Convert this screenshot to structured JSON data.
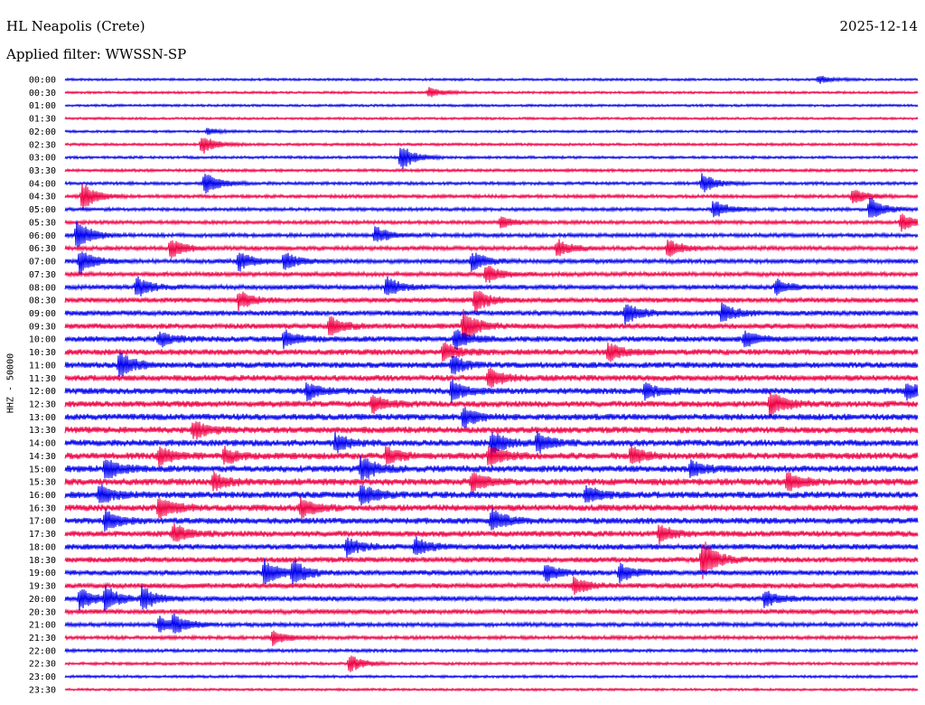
{
  "header": {
    "station": "HL Neapolis (Crete)",
    "date": "2025-12-14",
    "filter": "Applied filter: WWSSN-SP",
    "channel": "HHZ - 50000"
  },
  "colors": {
    "trace_a": "#0000ee",
    "trace_b": "#ee0044",
    "background": "#ffffff",
    "text": "#000000"
  },
  "chart_data": {
    "type": "line",
    "title": "HL Neapolis (Crete)",
    "subtitle": "Applied filter: WWSSN-SP",
    "ylabel": "HHZ - 50000",
    "grid": false,
    "legend": "none",
    "row_labels": [
      "00:00",
      "00:30",
      "01:00",
      "01:30",
      "02:00",
      "02:30",
      "03:00",
      "03:30",
      "04:00",
      "04:30",
      "05:00",
      "05:30",
      "06:00",
      "06:30",
      "07:00",
      "07:30",
      "08:00",
      "08:30",
      "09:00",
      "09:30",
      "10:00",
      "10:30",
      "11:00",
      "11:30",
      "12:00",
      "12:30",
      "13:00",
      "13:30",
      "14:00",
      "14:30",
      "15:00",
      "15:30",
      "16:00",
      "16:30",
      "17:00",
      "17:30",
      "18:00",
      "18:30",
      "19:00",
      "19:30",
      "20:00",
      "20:30",
      "21:00",
      "21:30",
      "22:00",
      "22:30",
      "23:00",
      "23:30"
    ],
    "row_minutes": 30,
    "noise_level": [
      0.9,
      0.9,
      0.9,
      0.9,
      0.9,
      1.0,
      1.0,
      1.1,
      1.2,
      1.3,
      1.3,
      1.4,
      1.5,
      1.6,
      1.7,
      1.7,
      1.8,
      1.9,
      2.0,
      2.1,
      2.2,
      2.3,
      2.3,
      2.3,
      2.4,
      2.4,
      2.5,
      2.5,
      2.5,
      2.6,
      2.6,
      2.6,
      2.6,
      2.5,
      2.4,
      2.3,
      2.2,
      2.1,
      2.0,
      2.0,
      1.9,
      1.8,
      1.6,
      1.4,
      1.2,
      1.1,
      1.0,
      0.9
    ],
    "events": [
      {
        "row": 0,
        "minute": 26.5,
        "amp": 4
      },
      {
        "row": 1,
        "minute": 12.8,
        "amp": 5
      },
      {
        "row": 4,
        "minute": 5.0,
        "amp": 3
      },
      {
        "row": 5,
        "minute": 4.8,
        "amp": 10
      },
      {
        "row": 6,
        "minute": 11.8,
        "amp": 14
      },
      {
        "row": 8,
        "minute": 4.9,
        "amp": 12
      },
      {
        "row": 8,
        "minute": 22.4,
        "amp": 10
      },
      {
        "row": 9,
        "minute": 0.6,
        "amp": 14
      },
      {
        "row": 9,
        "minute": 27.7,
        "amp": 8
      },
      {
        "row": 10,
        "minute": 22.8,
        "amp": 10
      },
      {
        "row": 10,
        "minute": 28.3,
        "amp": 12
      },
      {
        "row": 11,
        "minute": 15.3,
        "amp": 6
      },
      {
        "row": 11,
        "minute": 29.4,
        "amp": 9
      },
      {
        "row": 12,
        "minute": 0.4,
        "amp": 16
      },
      {
        "row": 12,
        "minute": 10.9,
        "amp": 9
      },
      {
        "row": 13,
        "minute": 3.7,
        "amp": 10
      },
      {
        "row": 13,
        "minute": 17.3,
        "amp": 9
      },
      {
        "row": 13,
        "minute": 21.2,
        "amp": 9
      },
      {
        "row": 14,
        "minute": 0.5,
        "amp": 14
      },
      {
        "row": 14,
        "minute": 6.1,
        "amp": 10
      },
      {
        "row": 14,
        "minute": 7.7,
        "amp": 10
      },
      {
        "row": 14,
        "minute": 14.3,
        "amp": 10
      },
      {
        "row": 15,
        "minute": 14.8,
        "amp": 10
      },
      {
        "row": 16,
        "minute": 2.5,
        "amp": 11
      },
      {
        "row": 16,
        "minute": 11.3,
        "amp": 11
      },
      {
        "row": 16,
        "minute": 25.0,
        "amp": 8
      },
      {
        "row": 17,
        "minute": 6.1,
        "amp": 10
      },
      {
        "row": 17,
        "minute": 14.4,
        "amp": 12
      },
      {
        "row": 18,
        "minute": 19.7,
        "amp": 11
      },
      {
        "row": 18,
        "minute": 23.1,
        "amp": 10
      },
      {
        "row": 19,
        "minute": 9.3,
        "amp": 10
      },
      {
        "row": 19,
        "minute": 14.0,
        "amp": 18
      },
      {
        "row": 20,
        "minute": 3.3,
        "amp": 8
      },
      {
        "row": 20,
        "minute": 7.7,
        "amp": 9
      },
      {
        "row": 20,
        "minute": 13.7,
        "amp": 11
      },
      {
        "row": 20,
        "minute": 23.9,
        "amp": 8
      },
      {
        "row": 21,
        "minute": 13.3,
        "amp": 10
      },
      {
        "row": 21,
        "minute": 19.1,
        "amp": 10
      },
      {
        "row": 22,
        "minute": 1.9,
        "amp": 14
      },
      {
        "row": 22,
        "minute": 13.6,
        "amp": 10
      },
      {
        "row": 23,
        "minute": 14.9,
        "amp": 10
      },
      {
        "row": 24,
        "minute": 8.5,
        "amp": 9
      },
      {
        "row": 24,
        "minute": 13.6,
        "amp": 11
      },
      {
        "row": 24,
        "minute": 20.4,
        "amp": 9
      },
      {
        "row": 24,
        "minute": 29.6,
        "amp": 9
      },
      {
        "row": 25,
        "minute": 10.8,
        "amp": 9
      },
      {
        "row": 25,
        "minute": 24.8,
        "amp": 14
      },
      {
        "row": 26,
        "minute": 14.0,
        "amp": 11
      },
      {
        "row": 27,
        "minute": 4.5,
        "amp": 10
      },
      {
        "row": 28,
        "minute": 9.5,
        "amp": 9
      },
      {
        "row": 28,
        "minute": 15.0,
        "amp": 12
      },
      {
        "row": 28,
        "minute": 16.6,
        "amp": 11
      },
      {
        "row": 29,
        "minute": 3.3,
        "amp": 9
      },
      {
        "row": 29,
        "minute": 5.6,
        "amp": 8
      },
      {
        "row": 29,
        "minute": 11.3,
        "amp": 9
      },
      {
        "row": 29,
        "minute": 14.9,
        "amp": 11
      },
      {
        "row": 29,
        "minute": 19.9,
        "amp": 10
      },
      {
        "row": 30,
        "minute": 1.4,
        "amp": 12
      },
      {
        "row": 30,
        "minute": 10.4,
        "amp": 13
      },
      {
        "row": 30,
        "minute": 22.0,
        "amp": 9
      },
      {
        "row": 31,
        "minute": 5.2,
        "amp": 9
      },
      {
        "row": 31,
        "minute": 14.3,
        "amp": 10
      },
      {
        "row": 31,
        "minute": 25.4,
        "amp": 10
      },
      {
        "row": 32,
        "minute": 1.2,
        "amp": 10
      },
      {
        "row": 32,
        "minute": 10.4,
        "amp": 11
      },
      {
        "row": 32,
        "minute": 18.3,
        "amp": 9
      },
      {
        "row": 33,
        "minute": 3.3,
        "amp": 13
      },
      {
        "row": 33,
        "minute": 8.3,
        "amp": 10
      },
      {
        "row": 34,
        "minute": 1.4,
        "amp": 10
      },
      {
        "row": 34,
        "minute": 15.0,
        "amp": 12
      },
      {
        "row": 35,
        "minute": 3.8,
        "amp": 10
      },
      {
        "row": 35,
        "minute": 20.9,
        "amp": 9
      },
      {
        "row": 36,
        "minute": 9.9,
        "amp": 9
      },
      {
        "row": 36,
        "minute": 12.3,
        "amp": 10
      },
      {
        "row": 37,
        "minute": 22.4,
        "amp": 22
      },
      {
        "row": 38,
        "minute": 7.0,
        "amp": 14
      },
      {
        "row": 38,
        "minute": 8.0,
        "amp": 13
      },
      {
        "row": 38,
        "minute": 16.9,
        "amp": 9
      },
      {
        "row": 38,
        "minute": 19.5,
        "amp": 10
      },
      {
        "row": 39,
        "minute": 17.9,
        "amp": 9
      },
      {
        "row": 40,
        "minute": 0.5,
        "amp": 12
      },
      {
        "row": 40,
        "minute": 1.4,
        "amp": 12
      },
      {
        "row": 40,
        "minute": 2.7,
        "amp": 12
      },
      {
        "row": 40,
        "minute": 24.6,
        "amp": 9
      },
      {
        "row": 42,
        "minute": 3.3,
        "amp": 8
      },
      {
        "row": 42,
        "minute": 3.8,
        "amp": 9
      },
      {
        "row": 43,
        "minute": 7.3,
        "amp": 7
      },
      {
        "row": 45,
        "minute": 10.0,
        "amp": 9
      }
    ]
  }
}
